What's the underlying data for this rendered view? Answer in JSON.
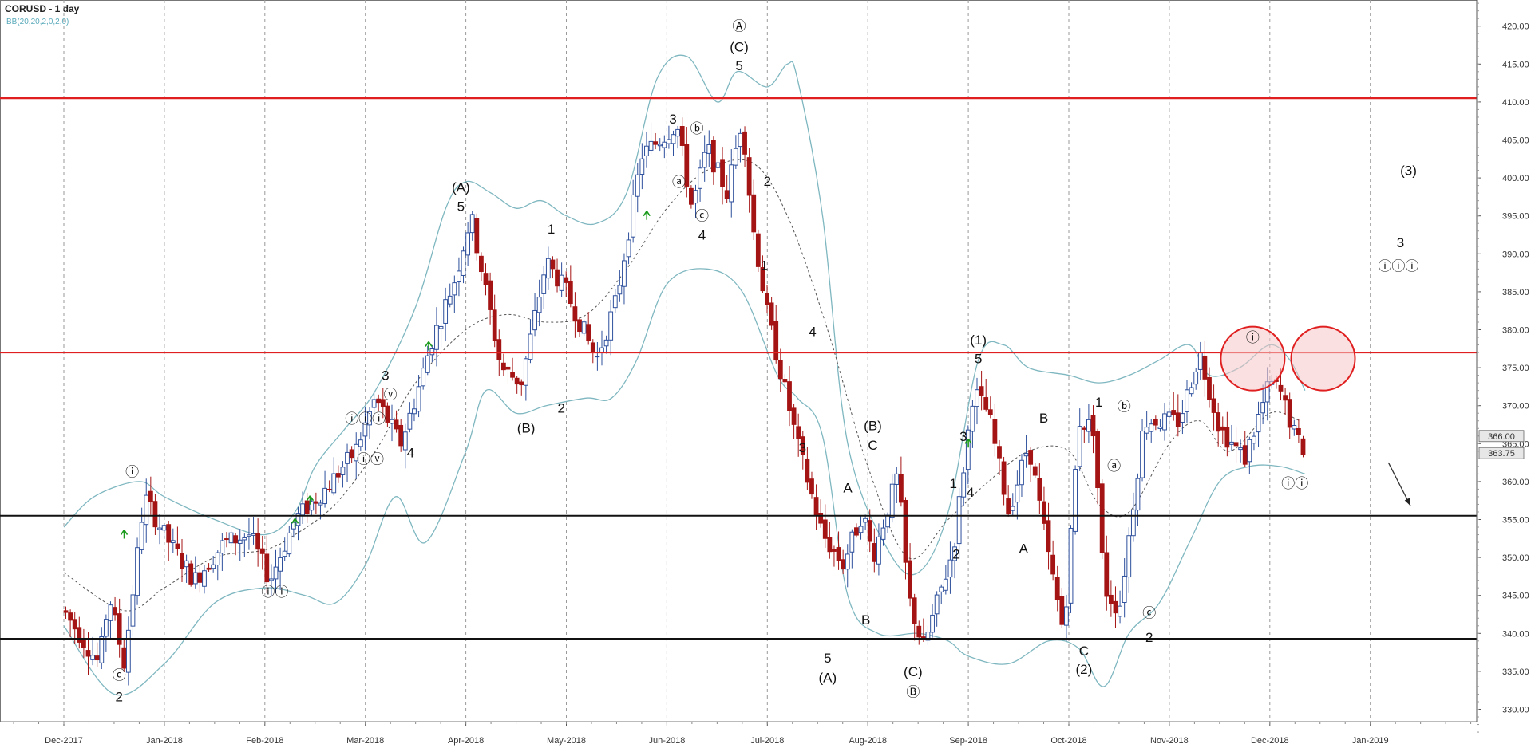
{
  "header": {
    "title": "CORUSD - 1 day",
    "indicator": "BB(20,20,2,0,2,0)"
  },
  "colors": {
    "up_candle": "#2d4f9c",
    "down_candle": "#a51414",
    "bollinger": "#7fb7c0",
    "middle_band": "#555555",
    "resistance": "#e02020",
    "support": "#111111",
    "green_arrow": "#1a9a1a",
    "circle_fill": "#f6c7c7",
    "price_bg": "#e7e7e7"
  },
  "chart_data": {
    "type": "candlestick",
    "title": "CORUSD - 1 day",
    "indicator": "BB(20,20,2,0,2,0)",
    "y_axis": {
      "range": [
        327,
        423
      ],
      "ticks": [
        "330.00",
        "335.00",
        "340.00",
        "345.00",
        "350.00",
        "355.00",
        "360.00",
        "365.00",
        "370.00",
        "375.00",
        "380.00",
        "385.00",
        "390.00",
        "395.00",
        "400.00",
        "405.00",
        "410.00",
        "415.00",
        "420.00"
      ],
      "price_labels": [
        "366.00",
        "363.75"
      ]
    },
    "x_axis": {
      "ticks": [
        "Dec-2017",
        "Jan-2018",
        "Feb-2018",
        "Mar-2018",
        "Apr-2018",
        "May-2018",
        "Jun-2018",
        "Jul-2018",
        "Aug-2018",
        "Sep-2018",
        "Oct-2018",
        "Nov-2018",
        "Dec-2018",
        "Jan-2019"
      ]
    },
    "horizontal_lines": [
      {
        "kind": "resistance",
        "price": 410.5
      },
      {
        "kind": "resistance",
        "price": 377.0
      },
      {
        "kind": "support",
        "price": 355.5
      },
      {
        "kind": "support",
        "price": 339.3
      }
    ],
    "price_path": [
      [
        0,
        343
      ],
      [
        0.35,
        336
      ],
      [
        0.45,
        345
      ],
      [
        0.6,
        336
      ],
      [
        0.8,
        358
      ],
      [
        1.0,
        353
      ],
      [
        1.3,
        347
      ],
      [
        1.6,
        352
      ],
      [
        1.85,
        353
      ],
      [
        2.05,
        347
      ],
      [
        2.3,
        355
      ],
      [
        2.6,
        359
      ],
      [
        2.9,
        364
      ],
      [
        3.1,
        371
      ],
      [
        3.35,
        365
      ],
      [
        3.5,
        371
      ],
      [
        3.65,
        378
      ],
      [
        3.9,
        387
      ],
      [
        4.05,
        395
      ],
      [
        4.2,
        385
      ],
      [
        4.35,
        375
      ],
      [
        4.55,
        373
      ],
      [
        4.8,
        389
      ],
      [
        5.0,
        385
      ],
      [
        5.3,
        376
      ],
      [
        5.5,
        384
      ],
      [
        5.75,
        403
      ],
      [
        6.1,
        407
      ],
      [
        6.25,
        396
      ],
      [
        6.4,
        404
      ],
      [
        6.6,
        398
      ],
      [
        6.75,
        408
      ],
      [
        6.85,
        394
      ],
      [
        7.0,
        382
      ],
      [
        7.3,
        365
      ],
      [
        7.55,
        353
      ],
      [
        7.75,
        349
      ],
      [
        7.95,
        356
      ],
      [
        8.05,
        350
      ],
      [
        8.3,
        361
      ],
      [
        8.4,
        345
      ],
      [
        8.55,
        338
      ],
      [
        8.85,
        351
      ],
      [
        9.05,
        372
      ],
      [
        9.2,
        369
      ],
      [
        9.4,
        356
      ],
      [
        9.6,
        365
      ],
      [
        9.8,
        350
      ],
      [
        9.95,
        340
      ],
      [
        10.1,
        368
      ],
      [
        10.25,
        367
      ],
      [
        10.35,
        346
      ],
      [
        10.5,
        343
      ],
      [
        10.75,
        368
      ],
      [
        11.1,
        368
      ],
      [
        11.3,
        377
      ],
      [
        11.5,
        367
      ],
      [
        11.75,
        363
      ],
      [
        12.0,
        373
      ],
      [
        12.1,
        372
      ],
      [
        12.25,
        366
      ],
      [
        12.35,
        364
      ]
    ],
    "bollinger_upper": [
      [
        0,
        354
      ],
      [
        0.3,
        358
      ],
      [
        0.75,
        360
      ],
      [
        1.0,
        358
      ],
      [
        1.5,
        355
      ],
      [
        2.0,
        353
      ],
      [
        2.3,
        356
      ],
      [
        2.5,
        362
      ],
      [
        2.8,
        367
      ],
      [
        3.1,
        372
      ],
      [
        3.5,
        383
      ],
      [
        3.8,
        396
      ],
      [
        4.0,
        399.5
      ],
      [
        4.25,
        398
      ],
      [
        4.5,
        396
      ],
      [
        4.75,
        397
      ],
      [
        5.0,
        395
      ],
      [
        5.3,
        394
      ],
      [
        5.6,
        398
      ],
      [
        5.9,
        413
      ],
      [
        6.2,
        416
      ],
      [
        6.5,
        410
      ],
      [
        6.7,
        414
      ],
      [
        7.0,
        412
      ],
      [
        7.2,
        415
      ],
      [
        7.3,
        413
      ],
      [
        7.55,
        395
      ],
      [
        7.8,
        365
      ],
      [
        8.2,
        351
      ],
      [
        8.5,
        348
      ],
      [
        8.8,
        356
      ],
      [
        9.1,
        376
      ],
      [
        9.35,
        378
      ],
      [
        9.6,
        375
      ],
      [
        10.0,
        374
      ],
      [
        10.3,
        373
      ],
      [
        10.6,
        374
      ],
      [
        10.9,
        376
      ],
      [
        11.2,
        378
      ],
      [
        11.4,
        374
      ],
      [
        11.7,
        375
      ],
      [
        12.0,
        378
      ],
      [
        12.2,
        376
      ],
      [
        12.35,
        372
      ]
    ],
    "bollinger_middle": [
      [
        0,
        348
      ],
      [
        0.6,
        343
      ],
      [
        1.0,
        346
      ],
      [
        1.5,
        350
      ],
      [
        2.0,
        351
      ],
      [
        2.3,
        353
      ],
      [
        2.7,
        357
      ],
      [
        3.1,
        364
      ],
      [
        3.5,
        373
      ],
      [
        4.0,
        380
      ],
      [
        4.4,
        382
      ],
      [
        4.8,
        381
      ],
      [
        5.2,
        382
      ],
      [
        5.6,
        388
      ],
      [
        6.0,
        396
      ],
      [
        6.4,
        401
      ],
      [
        6.85,
        402
      ],
      [
        7.2,
        395
      ],
      [
        7.6,
        380
      ],
      [
        8.0,
        362
      ],
      [
        8.4,
        350
      ],
      [
        8.8,
        355
      ],
      [
        9.2,
        360
      ],
      [
        9.6,
        364
      ],
      [
        10.0,
        364
      ],
      [
        10.3,
        357
      ],
      [
        10.6,
        356
      ],
      [
        11.0,
        365
      ],
      [
        11.3,
        368
      ],
      [
        11.6,
        364
      ],
      [
        12.0,
        369
      ],
      [
        12.3,
        368
      ]
    ],
    "bollinger_lower": [
      [
        0,
        341
      ],
      [
        0.5,
        332
      ],
      [
        1.0,
        336
      ],
      [
        1.5,
        344
      ],
      [
        2.0,
        346
      ],
      [
        2.4,
        345
      ],
      [
        2.7,
        344
      ],
      [
        3.0,
        349
      ],
      [
        3.3,
        358
      ],
      [
        3.6,
        352
      ],
      [
        4.0,
        364
      ],
      [
        4.2,
        372
      ],
      [
        4.5,
        369
      ],
      [
        4.8,
        370
      ],
      [
        5.2,
        371
      ],
      [
        5.45,
        371
      ],
      [
        5.7,
        376
      ],
      [
        6.0,
        386
      ],
      [
        6.4,
        388
      ],
      [
        6.75,
        385
      ],
      [
        7.1,
        374
      ],
      [
        7.3,
        371
      ],
      [
        7.55,
        366
      ],
      [
        7.8,
        345
      ],
      [
        8.1,
        340
      ],
      [
        8.5,
        340
      ],
      [
        8.8,
        339
      ],
      [
        9.0,
        337
      ],
      [
        9.4,
        336
      ],
      [
        9.8,
        339
      ],
      [
        10.1,
        338
      ],
      [
        10.35,
        333
      ],
      [
        10.6,
        340
      ],
      [
        10.9,
        344
      ],
      [
        11.2,
        352
      ],
      [
        11.5,
        360
      ],
      [
        11.8,
        362
      ],
      [
        12.1,
        362
      ],
      [
        12.35,
        361
      ]
    ],
    "wave_labels": [
      {
        "text": "Ⓐ",
        "month": 6.72,
        "price": 420.0
      },
      {
        "text": "(C)",
        "month": 6.72,
        "price": 417.3
      },
      {
        "text": "5",
        "month": 6.72,
        "price": 414.8
      },
      {
        "text": "3",
        "month": 6.06,
        "price": 407.8
      },
      {
        "text": "ⓑ",
        "month": 6.3,
        "price": 406.5
      },
      {
        "text": "ⓐ",
        "month": 6.12,
        "price": 399.5
      },
      {
        "text": "ⓒ",
        "month": 6.35,
        "price": 395.0
      },
      {
        "text": "4",
        "month": 6.35,
        "price": 392.5
      },
      {
        "text": "2",
        "month": 7.0,
        "price": 399.6
      },
      {
        "text": "1",
        "month": 6.97,
        "price": 388.5
      },
      {
        "text": "(A)",
        "month": 3.95,
        "price": 398.8
      },
      {
        "text": "5",
        "month": 3.95,
        "price": 396.3
      },
      {
        "text": "1",
        "month": 4.85,
        "price": 393.3
      },
      {
        "text": "2",
        "month": 4.95,
        "price": 369.7
      },
      {
        "text": "(B)",
        "month": 4.6,
        "price": 367.1
      },
      {
        "text": "3",
        "month": 3.2,
        "price": 374.0
      },
      {
        "text": "ⓥ",
        "month": 3.25,
        "price": 371.5
      },
      {
        "text": "ⓘⓘⓘ",
        "month": 3.0,
        "price": 368.3
      },
      {
        "text": "ⓘⓥ",
        "month": 3.05,
        "price": 363.0
      },
      {
        "text": "4",
        "month": 3.45,
        "price": 363.8
      },
      {
        "text": "ⓘ",
        "month": 0.68,
        "price": 361.3
      },
      {
        "text": "ⓘⓘ",
        "month": 2.1,
        "price": 345.5
      },
      {
        "text": "ⓒ",
        "month": 0.55,
        "price": 334.5
      },
      {
        "text": "2",
        "month": 0.55,
        "price": 331.7
      },
      {
        "text": "4",
        "month": 7.45,
        "price": 379.8
      },
      {
        "text": "3",
        "month": 7.35,
        "price": 364.5
      },
      {
        "text": "A",
        "month": 7.8,
        "price": 359.2
      },
      {
        "text": "(B)",
        "month": 8.05,
        "price": 367.4
      },
      {
        "text": "C",
        "month": 8.05,
        "price": 364.8
      },
      {
        "text": "B",
        "month": 7.98,
        "price": 341.8
      },
      {
        "text": "5",
        "month": 7.6,
        "price": 336.8
      },
      {
        "text": "(A)",
        "month": 7.6,
        "price": 334.2
      },
      {
        "text": "(C)",
        "month": 8.45,
        "price": 335.0
      },
      {
        "text": "Ⓑ",
        "month": 8.45,
        "price": 332.3
      },
      {
        "text": "(1)",
        "month": 9.1,
        "price": 378.7
      },
      {
        "text": "5",
        "month": 9.1,
        "price": 376.2
      },
      {
        "text": "3",
        "month": 8.95,
        "price": 366.0
      },
      {
        "text": "1",
        "month": 8.85,
        "price": 359.8
      },
      {
        "text": "4",
        "month": 9.02,
        "price": 358.6
      },
      {
        "text": "2",
        "month": 8.88,
        "price": 350.5
      },
      {
        "text": "B",
        "month": 9.75,
        "price": 368.4
      },
      {
        "text": "A",
        "month": 9.55,
        "price": 351.2
      },
      {
        "text": "1",
        "month": 10.3,
        "price": 370.5
      },
      {
        "text": "ⓑ",
        "month": 10.55,
        "price": 369.9
      },
      {
        "text": "ⓐ",
        "month": 10.45,
        "price": 362.1
      },
      {
        "text": "C",
        "month": 10.15,
        "price": 337.7
      },
      {
        "text": "(2)",
        "month": 10.15,
        "price": 335.3
      },
      {
        "text": "ⓒ",
        "month": 10.8,
        "price": 342.7
      },
      {
        "text": "2",
        "month": 10.8,
        "price": 339.5
      },
      {
        "text": "ⓘ",
        "month": 11.83,
        "price": 379.0
      },
      {
        "text": "ⓘⓘ",
        "month": 12.25,
        "price": 359.8
      },
      {
        "text": "(3)",
        "month": 13.38,
        "price": 401.0
      },
      {
        "text": "3",
        "month": 13.3,
        "price": 391.5
      },
      {
        "text": "ⓘⓘⓘ",
        "month": 13.28,
        "price": 388.4
      }
    ],
    "highlight_circles": [
      {
        "month": 11.83,
        "price": 376.2
      },
      {
        "month": 12.53,
        "price": 376.2
      }
    ],
    "projection_arrow": {
      "from": [
        13.18,
        362.5
      ],
      "to": [
        13.4,
        356.8
      ]
    },
    "green_arrows": [
      {
        "month": 0.6,
        "price": 353.0
      },
      {
        "month": 2.3,
        "price": 354.5
      },
      {
        "month": 2.45,
        "price": 357.5
      },
      {
        "month": 3.63,
        "price": 377.8
      },
      {
        "month": 5.8,
        "price": 395.0
      },
      {
        "month": 9.0,
        "price": 365.0
      }
    ]
  }
}
